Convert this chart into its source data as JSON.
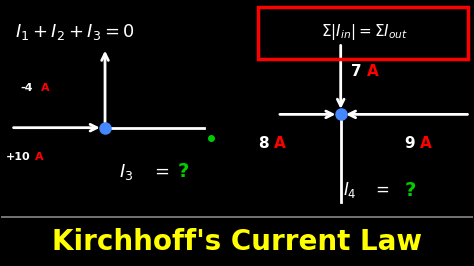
{
  "bg_color": "#000000",
  "title": "Kirchhoff's Current Law",
  "title_color": "#FFFF00",
  "underline_color": "#888888",
  "white": "#FFFFFF",
  "red": "#FF0000",
  "green": "#00CC00",
  "blue_dot": "#4488FF",
  "yellow": "#FFFF00",
  "diagram1_junction": [
    0.22,
    0.52
  ],
  "diagram2_junction": [
    0.72,
    0.57
  ],
  "formula_box_color": "#FF0000"
}
